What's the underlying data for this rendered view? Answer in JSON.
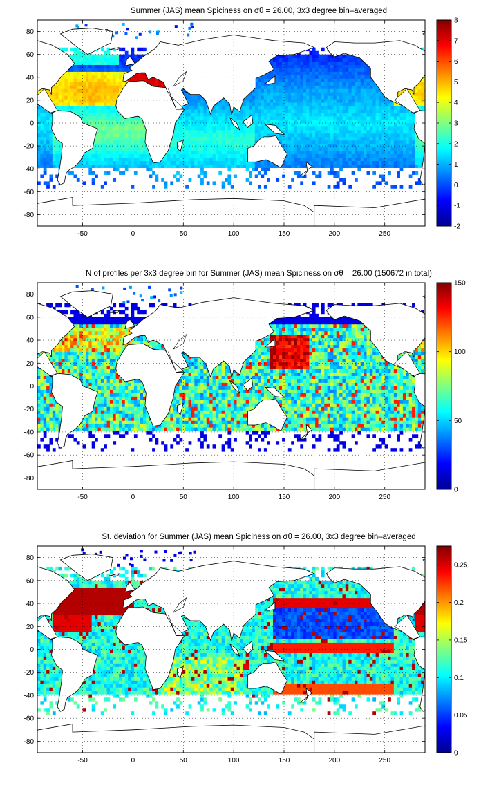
{
  "chart_data": [
    {
      "type": "heatmap",
      "title": "Summer (JAS) mean Spiciness on σθ = 26.00, 3x3 degree bin–averaged",
      "xticks": [
        "-50",
        "0",
        "50",
        "100",
        "150",
        "200",
        "250"
      ],
      "yticks": [
        "80",
        "60",
        "40",
        "20",
        "0",
        "-20",
        "-40",
        "-60",
        "-80"
      ],
      "xlim": [
        -95,
        290
      ],
      "ylim": [
        -90,
        90
      ],
      "grid": true,
      "colorbar": {
        "ticks": [
          "8",
          "7",
          "6",
          "5",
          "4",
          "3",
          "2",
          "1",
          "0",
          "-1",
          "-2"
        ],
        "range": [
          -2,
          8
        ]
      }
    },
    {
      "type": "heatmap",
      "title": "N of profiles per 3x3 degree bin for Summer (JAS) mean Spiciness on σθ = 26.00 (150672 in total)",
      "xticks": [
        "-50",
        "0",
        "50",
        "100",
        "150",
        "200",
        "250"
      ],
      "yticks": [
        "80",
        "60",
        "40",
        "20",
        "0",
        "-20",
        "-40",
        "-60",
        "-80"
      ],
      "xlim": [
        -95,
        290
      ],
      "ylim": [
        -90,
        90
      ],
      "grid": true,
      "colorbar": {
        "ticks": [
          "150",
          "100",
          "50",
          "0"
        ],
        "range": [
          0,
          150
        ]
      }
    },
    {
      "type": "heatmap",
      "title": "St. deviation for Summer (JAS) mean Spiciness on σθ = 26.00, 3x3 degree bin–averaged",
      "xticks": [
        "-50",
        "0",
        "50",
        "100",
        "150",
        "200",
        "250"
      ],
      "yticks": [
        "80",
        "60",
        "40",
        "20",
        "0",
        "-20",
        "-40",
        "-60",
        "-80"
      ],
      "xlim": [
        -95,
        290
      ],
      "ylim": [
        -90,
        90
      ],
      "grid": true,
      "colorbar": {
        "ticks": [
          "0.25",
          "0.2",
          "0.15",
          "0.1",
          "0.05",
          "0"
        ],
        "range": [
          0,
          0.275
        ]
      }
    }
  ]
}
